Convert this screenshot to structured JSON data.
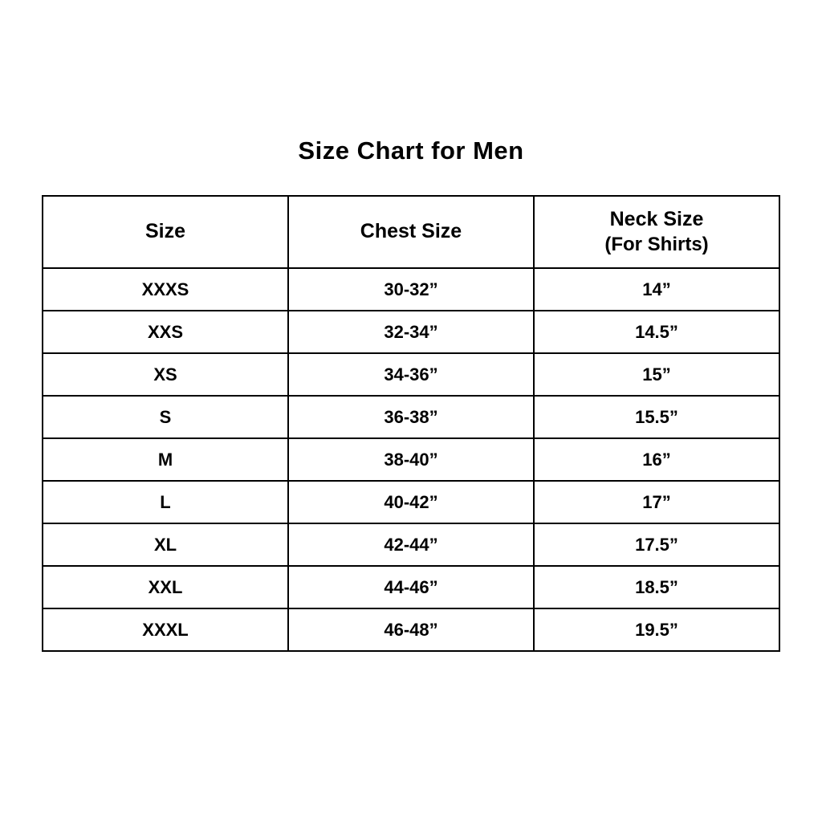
{
  "page": {
    "title": "Size Chart for Men",
    "background": "#ffffff"
  },
  "colors": {
    "text": "#000000",
    "border": "#000000",
    "background": "#ffffff"
  },
  "chart_data": {
    "type": "table",
    "title": "Size Chart for Men",
    "columns": [
      "Size",
      "Chest Size",
      "Neck Size (For Shirts)"
    ],
    "header": {
      "size": "Size",
      "chest": "Chest Size",
      "neck_line1": "Neck Size",
      "neck_line2": "(For Shirts)"
    },
    "rows": [
      {
        "size": "XXXS",
        "chest": "30-32”",
        "neck": "14”"
      },
      {
        "size": "XXS",
        "chest": "32-34”",
        "neck": "14.5”"
      },
      {
        "size": "XS",
        "chest": "34-36”",
        "neck": "15”"
      },
      {
        "size": "S",
        "chest": "36-38”",
        "neck": "15.5”"
      },
      {
        "size": "M",
        "chest": "38-40”",
        "neck": "16”"
      },
      {
        "size": "L",
        "chest": "40-42”",
        "neck": "17”"
      },
      {
        "size": "XL",
        "chest": "42-44”",
        "neck": "17.5”"
      },
      {
        "size": "XXL",
        "chest": "44-46”",
        "neck": "18.5”"
      },
      {
        "size": "XXXL",
        "chest": "46-48”",
        "neck": "19.5”"
      }
    ]
  }
}
